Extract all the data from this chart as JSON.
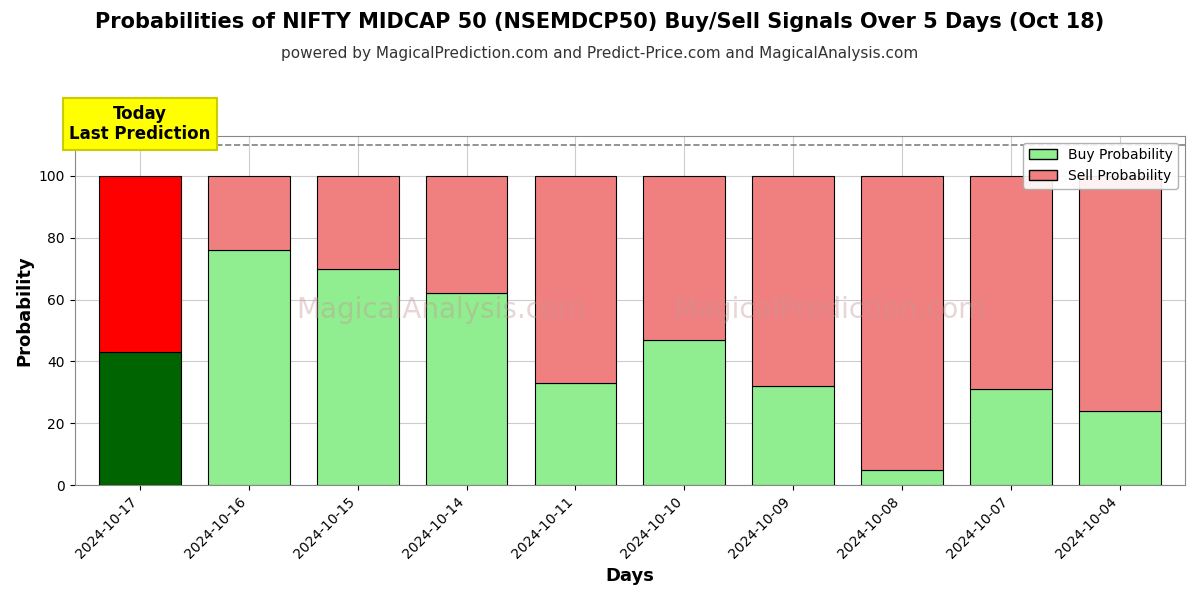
{
  "title": "Probabilities of NIFTY MIDCAP 50 (NSEMDCP50) Buy/Sell Signals Over 5 Days (Oct 18)",
  "subtitle": "powered by MagicalPrediction.com and Predict-Price.com and MagicalAnalysis.com",
  "xlabel": "Days",
  "ylabel": "Probability",
  "days": [
    "2024-10-17",
    "2024-10-16",
    "2024-10-15",
    "2024-10-14",
    "2024-10-11",
    "2024-10-10",
    "2024-10-09",
    "2024-10-08",
    "2024-10-07",
    "2024-10-04"
  ],
  "buy_values": [
    43,
    76,
    70,
    62,
    33,
    47,
    32,
    5,
    31,
    24
  ],
  "sell_values": [
    57,
    24,
    30,
    38,
    67,
    53,
    68,
    95,
    69,
    76
  ],
  "buy_color_first": "#006400",
  "buy_color_rest": "#90EE90",
  "sell_color_first": "#FF0000",
  "sell_color_rest": "#F08080",
  "bar_edge_color": "#000000",
  "bar_width": 0.75,
  "ylim": [
    0,
    113
  ],
  "yticks": [
    0,
    20,
    40,
    60,
    80,
    100
  ],
  "dashed_line_y": 110,
  "today_box_color": "#FFFF00",
  "today_text": "Today\nLast Prediction",
  "legend_buy_label": "Buy Probability",
  "legend_sell_label": "Sell Probability",
  "background_color": "#ffffff",
  "grid_color": "#cccccc",
  "title_fontsize": 15,
  "subtitle_fontsize": 11,
  "axis_label_fontsize": 13,
  "tick_fontsize": 10,
  "watermark1": "MagicalAnalysis.com",
  "watermark2": "MagicalPrediction.com"
}
